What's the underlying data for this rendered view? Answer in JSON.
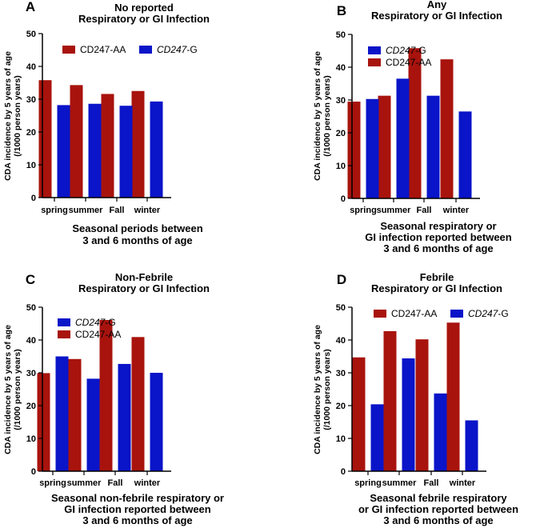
{
  "colors": {
    "AA": "#a8130d",
    "G": "#0a14c8"
  },
  "chart_data": [
    {
      "id": "A",
      "type": "bar",
      "panel_letter": "A",
      "title_lines": [
        "No reported",
        "Respiratory or GI Infection"
      ],
      "ylabel_lines": [
        "CDA incidence by 5 years of age",
        "(/1000 person years)"
      ],
      "xlabel_lines": [
        "Seasonal periods between",
        "3 and 6 months of age"
      ],
      "categories": [
        "spring",
        "summer",
        "Fall",
        "winter"
      ],
      "ylim": [
        0,
        50
      ],
      "yticks": [
        0,
        10,
        20,
        30,
        40,
        50
      ],
      "legend_order": "AA-G-horizontal",
      "legend": {
        "AA": {
          "label": "CD247-AA"
        },
        "G": {
          "italic": "CD247",
          "suffix": "-G"
        }
      },
      "series": [
        {
          "key": "AA",
          "name": "CD247-AA",
          "values": [
            35.8,
            34.3,
            31.6,
            32.5
          ]
        },
        {
          "key": "G",
          "name": "CD247-G",
          "values": [
            28.2,
            28.6,
            28.0,
            29.3
          ]
        }
      ]
    },
    {
      "id": "B",
      "type": "bar",
      "panel_letter": "B",
      "title_lines": [
        "Any",
        "Respiratory or GI Infection"
      ],
      "ylabel_lines": [
        "CDA incidence by 5 years of age",
        "(/1000 person years)"
      ],
      "xlabel_lines": [
        "Seasonal respiratory or",
        "GI infection reported between",
        "3 and 6 months of age"
      ],
      "categories": [
        "spring",
        "summer",
        "Fall",
        "winter"
      ],
      "ylim": [
        0,
        50
      ],
      "yticks": [
        0,
        10,
        20,
        30,
        40,
        50
      ],
      "legend_order": "G-AA-vertical",
      "legend": {
        "AA": {
          "label": "CD247-AA"
        },
        "G": {
          "italic": "CD247",
          "suffix": "-G"
        }
      },
      "series": [
        {
          "key": "AA",
          "name": "CD247-AA",
          "values": [
            29.5,
            31.3,
            45.8,
            42.4
          ]
        },
        {
          "key": "G",
          "name": "CD247-G",
          "values": [
            30.3,
            36.5,
            31.3,
            26.5
          ]
        }
      ]
    },
    {
      "id": "C",
      "type": "bar",
      "panel_letter": "C",
      "title_lines": [
        "Non-Febrile",
        "Respiratory or GI Infection"
      ],
      "ylabel_lines": [
        "CDA incidence by 5 years of age",
        "(/1000 person years)"
      ],
      "xlabel_lines": [
        "Seasonal non-febrile respiratory or",
        "GI infection reported between",
        "3 and 6 months of age"
      ],
      "categories": [
        "spring",
        "summer",
        "Fall",
        "winter"
      ],
      "ylim": [
        0,
        50
      ],
      "yticks": [
        0,
        10,
        20,
        30,
        40,
        50
      ],
      "legend_order": "G-AA-vertical",
      "legend": {
        "AA": {
          "label": "CD247-AA"
        },
        "G": {
          "italic": "CD247",
          "suffix": "-G"
        }
      },
      "series": [
        {
          "key": "AA",
          "name": "CD247-AA",
          "values": [
            29.9,
            34.2,
            46.1,
            40.9
          ]
        },
        {
          "key": "G",
          "name": "CD247-G",
          "values": [
            35.0,
            28.2,
            32.7,
            30.0
          ]
        }
      ]
    },
    {
      "id": "D",
      "type": "bar",
      "panel_letter": "D",
      "title_lines": [
        "Febrile",
        "Respiratory or GI Infection"
      ],
      "ylabel_lines": [
        "CDA incidence by 5 years of age",
        "(/1000 person years)"
      ],
      "xlabel_lines": [
        "Seasonal febrile respiratory",
        "or GI infection reported between",
        "3 and 6 months of age"
      ],
      "categories": [
        "spring",
        "summer",
        "Fall",
        "winter"
      ],
      "ylim": [
        0,
        50
      ],
      "yticks": [
        0,
        10,
        20,
        30,
        40,
        50
      ],
      "legend_order": "AA-G-horizontal",
      "legend": {
        "AA": {
          "label": "CD247-AA"
        },
        "G": {
          "italic": "CD247",
          "suffix": "-G"
        }
      },
      "series": [
        {
          "key": "AA",
          "name": "CD247-AA",
          "values": [
            34.7,
            42.7,
            40.2,
            45.3
          ]
        },
        {
          "key": "G",
          "name": "CD247-G",
          "values": [
            20.4,
            34.4,
            23.7,
            15.5
          ]
        }
      ]
    }
  ]
}
